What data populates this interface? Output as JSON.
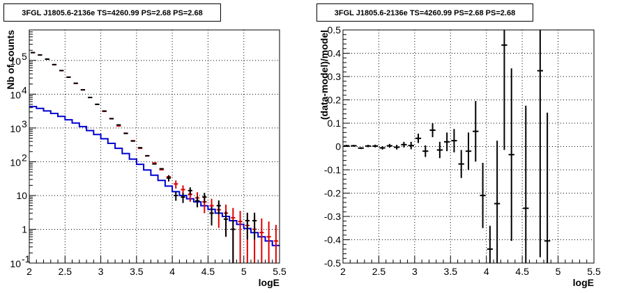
{
  "chart_data": [
    {
      "type": "line",
      "title": "3FGL J1805.6-2136e TS=4260.99 PS=2.68 PS=2.68",
      "xlabel": "logE",
      "ylabel": "Nb of counts",
      "xlim": [
        2,
        5.5
      ],
      "ylim": [
        0.1,
        800000
      ],
      "y_scale": "log",
      "grid": true,
      "x_ticks": [
        "2",
        "2.5",
        "3",
        "3.5",
        "4",
        "4.5",
        "5",
        "5.5"
      ],
      "y_ticks": [
        {
          "v": 0.1,
          "base": "10",
          "exp": "-1"
        },
        {
          "v": 1,
          "label": "1"
        },
        {
          "v": 10,
          "label": "10"
        },
        {
          "v": 100,
          "base": "10",
          "exp": "2"
        },
        {
          "v": 1000,
          "base": "10",
          "exp": "3"
        },
        {
          "v": 10000,
          "base": "10",
          "exp": "4"
        },
        {
          "v": 100000,
          "base": "10",
          "exp": "5"
        }
      ],
      "bin_edges": [
        2.0,
        2.1,
        2.2,
        2.3,
        2.4,
        2.5,
        2.6,
        2.7,
        2.8,
        2.9,
        3.0,
        3.1,
        3.2,
        3.3,
        3.4,
        3.5,
        3.6,
        3.7,
        3.8,
        3.9,
        4.0,
        4.1,
        4.2,
        4.3,
        4.4,
        4.5,
        4.6,
        4.7,
        4.8,
        4.9,
        5.0,
        5.1,
        5.2,
        5.3,
        5.4,
        5.5
      ],
      "series": [
        {
          "role": "model-total",
          "color": "#e00000",
          "style": "markers-with-error-bars",
          "values": [
            170000,
            145000,
            110000,
            75000,
            50000,
            32000,
            21000,
            13500,
            8000,
            5000,
            3100,
            1900,
            1150,
            700,
            420,
            250,
            150,
            92,
            58,
            36,
            22,
            15,
            11,
            8.5,
            6.5,
            5,
            3.8,
            3,
            2.2,
            1.7,
            1.3,
            1.0,
            0.8,
            0.6,
            0.45
          ],
          "err_low": [
            0,
            0,
            0,
            0,
            0,
            0,
            0,
            0,
            0,
            0,
            0,
            0,
            0,
            0,
            0,
            0,
            0,
            0,
            0,
            0,
            6,
            5,
            4.5,
            4,
            3.5,
            3,
            2.7,
            2.4,
            2.1,
            1.7,
            1.3,
            1.0,
            0.8,
            0.6,
            0.45
          ],
          "err_high": [
            0,
            0,
            0,
            0,
            0,
            0,
            0,
            0,
            0,
            0,
            0,
            0,
            0,
            0,
            0,
            0,
            0,
            0,
            0,
            0,
            6,
            5,
            4.5,
            4,
            3.5,
            3,
            2.7,
            2.4,
            2.1,
            1.8,
            1.7,
            1.5,
            1.3,
            1.1,
            0.9
          ]
        },
        {
          "role": "source-component",
          "color": "#0000d0",
          "style": "step",
          "values": [
            4300,
            3800,
            3200,
            2700,
            2200,
            1750,
            1400,
            1100,
            840,
            640,
            480,
            350,
            250,
            175,
            120,
            84,
            57,
            40,
            28,
            19,
            13,
            10,
            8,
            6.5,
            5,
            3.9,
            3.0,
            2.4,
            1.8,
            1.4,
            1.05,
            0.8,
            0.6,
            0.45,
            0.33
          ]
        },
        {
          "role": "data",
          "color": "#000000",
          "style": "points-with-error-bars",
          "x": [
            2.05,
            2.15,
            2.25,
            2.35,
            2.45,
            2.55,
            2.65,
            2.75,
            2.85,
            2.95,
            3.05,
            3.15,
            3.25,
            3.35,
            3.45,
            3.55,
            3.65,
            3.75,
            3.85,
            3.95,
            4.05,
            4.15,
            4.25,
            4.35,
            4.45,
            4.55,
            4.65,
            4.75,
            4.85,
            5.05,
            5.15
          ],
          "y": [
            170500,
            145500,
            109000,
            75200,
            50100,
            31900,
            21050,
            13450,
            8010,
            5020,
            3180,
            1880,
            1230,
            690,
            410,
            260,
            150,
            86,
            62,
            33,
            10,
            9,
            14,
            7,
            9,
            3,
            5,
            2,
            1,
            1.8,
            1.8
          ],
          "err_low": [
            0,
            0,
            0,
            0,
            0,
            0,
            0,
            0,
            0,
            0,
            0,
            0,
            0,
            0,
            0,
            0,
            0,
            0,
            0,
            7,
            3,
            3,
            3.5,
            2.5,
            3,
            1.7,
            2.2,
            1.4,
            0.9,
            1.3,
            1.3
          ],
          "err_high": [
            0,
            0,
            0,
            0,
            0,
            0,
            0,
            0,
            0,
            0,
            0,
            0,
            0,
            0,
            0,
            0,
            0,
            0,
            0,
            7,
            3,
            3,
            3.5,
            2.5,
            3,
            1.7,
            2.2,
            1.4,
            0.9,
            1.3,
            1.3
          ]
        }
      ]
    },
    {
      "type": "scatter",
      "title": "3FGL J1805.6-2136e TS=4260.99 PS=2.68 PS=2.68",
      "xlabel": "logE",
      "ylabel": "(data-model)/model",
      "xlim": [
        2,
        5.5
      ],
      "ylim": [
        -0.5,
        0.5
      ],
      "grid": true,
      "x_ticks": [
        "2",
        "2.5",
        "3",
        "3.5",
        "4",
        "4.5",
        "5",
        "5.5"
      ],
      "y_ticks": [
        "-0.5",
        "-0.4",
        "-0.3",
        "-0.2",
        "-0.1",
        "0",
        "0.1",
        "0.2",
        "0.3",
        "0.4",
        "0.5"
      ],
      "x": [
        2.05,
        2.15,
        2.25,
        2.35,
        2.45,
        2.55,
        2.65,
        2.75,
        2.85,
        2.95,
        3.05,
        3.15,
        3.25,
        3.35,
        3.45,
        3.55,
        3.65,
        3.75,
        3.85,
        3.95,
        4.05,
        4.15,
        4.25,
        4.35,
        4.55,
        4.75,
        4.85
      ],
      "y": [
        0.003,
        0.003,
        -0.007,
        0.002,
        0.002,
        -0.006,
        0.003,
        -0.003,
        0.008,
        0.004,
        0.035,
        -0.02,
        0.07,
        -0.015,
        0.02,
        0.025,
        -0.075,
        -0.02,
        0.065,
        -0.21,
        -0.44,
        -0.245,
        0.435,
        -0.035,
        -0.265,
        0.325,
        -0.405
      ],
      "err": [
        0.004,
        0.004,
        0.004,
        0.005,
        0.006,
        0.007,
        0.008,
        0.01,
        0.012,
        0.016,
        0.02,
        0.025,
        0.03,
        0.035,
        0.04,
        0.05,
        0.06,
        0.08,
        0.13,
        0.14,
        0.1,
        0.27,
        0.45,
        0.37,
        0.44,
        0.8,
        0.55
      ]
    }
  ]
}
